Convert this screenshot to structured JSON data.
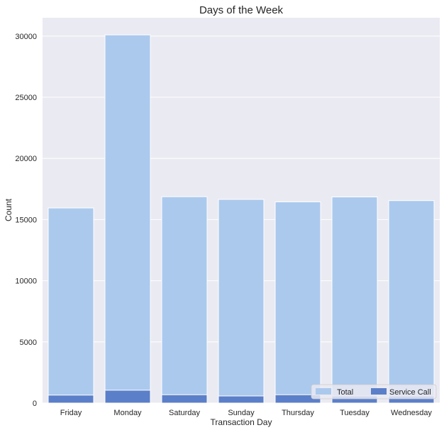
{
  "chart_data": {
    "type": "bar",
    "title": "Days of the Week",
    "xlabel": "Transaction Day",
    "ylabel": "Count",
    "categories": [
      "Friday",
      "Monday",
      "Saturday",
      "Sunday",
      "Thursday",
      "Tuesday",
      "Wednesday"
    ],
    "ylim": [
      0,
      31500
    ],
    "yticks": [
      0,
      5000,
      10000,
      15000,
      20000,
      25000,
      30000
    ],
    "grid": true,
    "legend_position": "bottom-right",
    "series": [
      {
        "name": "Total",
        "color": "#abc9ed",
        "values": [
          15950,
          30100,
          16870,
          16650,
          16450,
          16850,
          16550
        ]
      },
      {
        "name": "Service Call",
        "color": "#5b7fc8",
        "values": [
          650,
          1050,
          680,
          580,
          680,
          580,
          580
        ]
      }
    ],
    "plot_background": "#eaeaf2"
  }
}
